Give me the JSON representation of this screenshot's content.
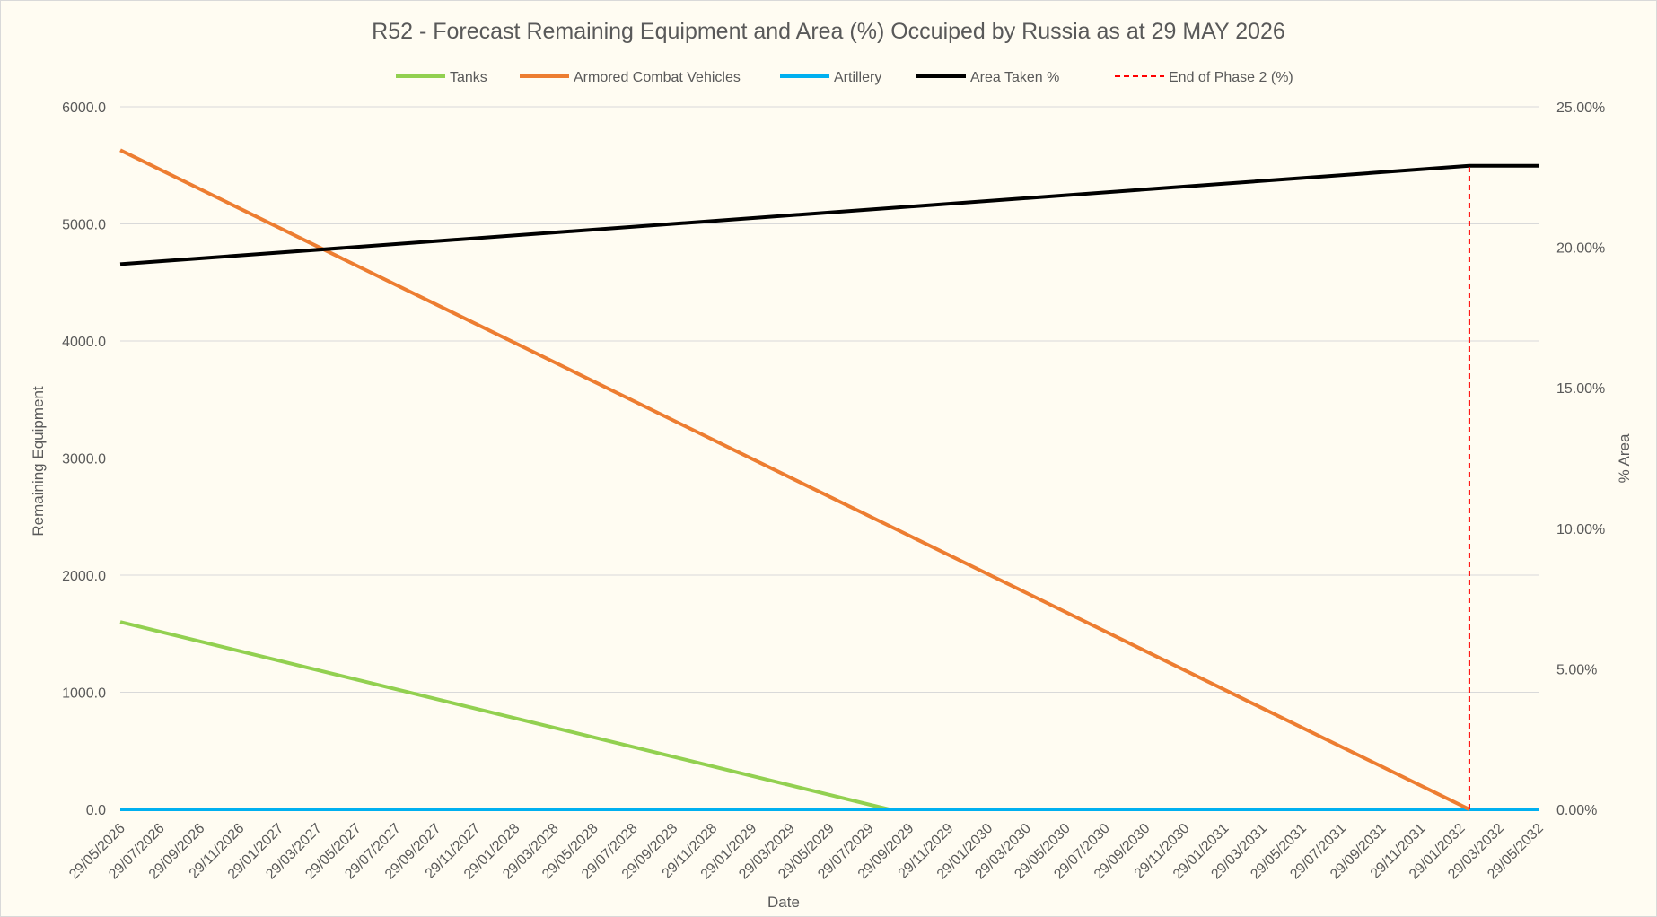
{
  "chart_data": {
    "type": "line",
    "title": "R52 - Forecast Remaining Equipment and Area (%) Occuiped by Russia as at 29 MAY 2026",
    "xlabel": "Date",
    "ylabel": "Remaining Equipment",
    "y2label": "% Area",
    "ylim": [
      0,
      6000
    ],
    "y2lim": [
      0,
      25
    ],
    "yticks": [
      "0.0",
      "1000.0",
      "2000.0",
      "3000.0",
      "4000.0",
      "5000.0",
      "6000.0"
    ],
    "y2ticks": [
      "0.00%",
      "5.00%",
      "10.00%",
      "15.00%",
      "20.00%",
      "25.00%"
    ],
    "categories": [
      "29/05/2026",
      "29/07/2026",
      "29/09/2026",
      "29/11/2026",
      "29/01/2027",
      "29/03/2027",
      "29/05/2027",
      "29/07/2027",
      "29/09/2027",
      "29/11/2027",
      "29/01/2028",
      "29/03/2028",
      "29/05/2028",
      "29/07/2028",
      "29/09/2028",
      "29/11/2028",
      "29/01/2029",
      "29/03/2029",
      "29/05/2029",
      "29/07/2029",
      "29/09/2029",
      "29/11/2029",
      "29/01/2030",
      "29/03/2030",
      "29/05/2030",
      "29/07/2030",
      "29/09/2030",
      "29/11/2030",
      "29/01/2031",
      "29/03/2031",
      "29/05/2031",
      "29/07/2031",
      "29/09/2031",
      "29/11/2031",
      "29/01/2032",
      "29/03/2032",
      "29/05/2032"
    ],
    "grid": true,
    "legend_position": "top",
    "series": [
      {
        "name": "Tanks",
        "axis": "left",
        "color": "#92d050",
        "style": "solid",
        "points": [
          [
            "29/05/2026",
            1600
          ],
          [
            "29/08/2029",
            0
          ],
          [
            "29/05/2032",
            0
          ]
        ]
      },
      {
        "name": "Armored Combat Vehicles",
        "axis": "left",
        "color": "#ed7d31",
        "style": "solid",
        "points": [
          [
            "29/05/2026",
            5630
          ],
          [
            "12/02/2032",
            0
          ]
        ]
      },
      {
        "name": "Artillery",
        "axis": "left",
        "color": "#00b0f0",
        "style": "solid",
        "points": [
          [
            "29/05/2026",
            0
          ],
          [
            "29/05/2032",
            0
          ]
        ]
      },
      {
        "name": "Area Taken %",
        "axis": "right",
        "color": "#000000",
        "style": "solid",
        "points": [
          [
            "29/05/2026",
            19.4
          ],
          [
            "12/02/2032",
            22.9
          ],
          [
            "29/05/2032",
            22.9
          ]
        ]
      },
      {
        "name": "End of Phase 2 (%)",
        "axis": "right",
        "color": "#ff0000",
        "style": "dashed",
        "points": [
          [
            "12/02/2032",
            0
          ],
          [
            "12/02/2032",
            22.9
          ]
        ]
      }
    ]
  }
}
